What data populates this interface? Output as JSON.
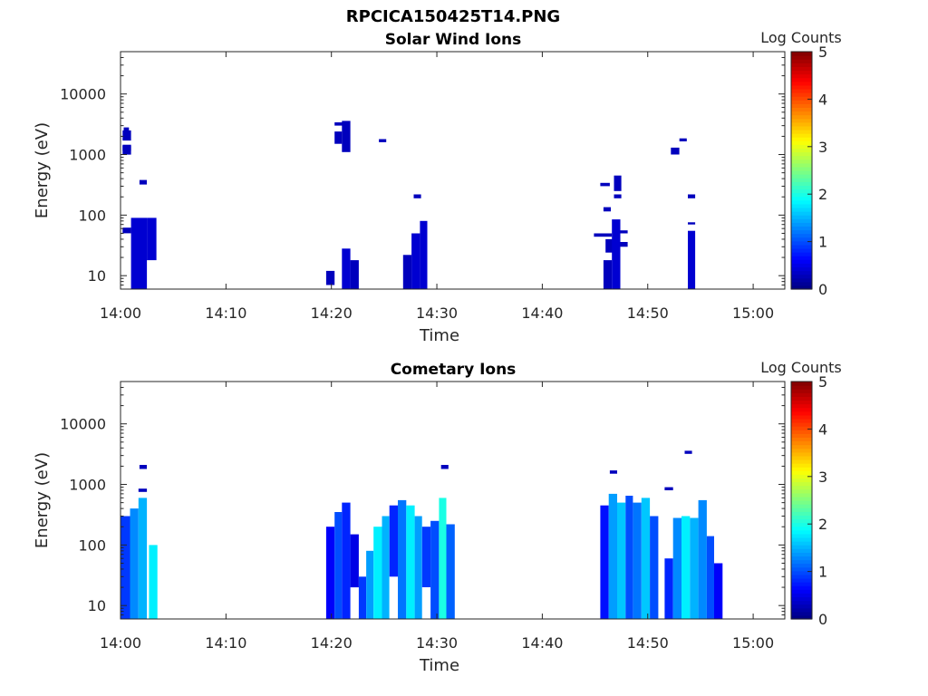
{
  "figure": {
    "title": "RPCICA150425T14.PNG"
  },
  "colorbar": {
    "label": "Log Counts",
    "ticks": [
      "0",
      "1",
      "2",
      "3",
      "4",
      "5"
    ],
    "range": [
      0,
      5
    ],
    "colormap": "jet"
  },
  "chart_data": [
    {
      "type": "heatmap",
      "title": "Solar Wind Ions",
      "xlabel": "Time",
      "ylabel": "Energy (eV)",
      "x_ticks": [
        "14:00",
        "14:10",
        "14:20",
        "14:30",
        "14:40",
        "14:50",
        "15:00"
      ],
      "x_range_min": [
        0,
        63
      ],
      "y_ticks": [
        "10",
        "100",
        "1000",
        "10000"
      ],
      "y_scale": "log",
      "ylim": [
        6,
        50000
      ],
      "z_label": "Log Counts",
      "zlim": [
        0,
        5
      ],
      "cells": [
        {
          "t": [
            0.2,
            1.0
          ],
          "e": [
            1700,
            2500
          ],
          "z": 0.3
        },
        {
          "t": [
            0.2,
            1.0
          ],
          "e": [
            1150,
            1450
          ],
          "z": 0.3
        },
        {
          "t": [
            0.2,
            1.0
          ],
          "e": [
            1000,
            1400
          ],
          "z": 0.3
        },
        {
          "t": [
            0.3,
            0.8
          ],
          "e": [
            2400,
            2800
          ],
          "z": 0.3
        },
        {
          "t": [
            1.8,
            2.5
          ],
          "e": [
            320,
            380
          ],
          "z": 0.3
        },
        {
          "t": [
            1.0,
            2.5
          ],
          "e": [
            6,
            90
          ],
          "z": 0.4
        },
        {
          "t": [
            2.5,
            3.4
          ],
          "e": [
            18,
            90
          ],
          "z": 0.4
        },
        {
          "t": [
            0.2,
            1.0
          ],
          "e": [
            50,
            62
          ],
          "z": 0.3
        },
        {
          "t": [
            19.5,
            20.3
          ],
          "e": [
            7,
            12
          ],
          "z": 0.3
        },
        {
          "t": [
            20.3,
            21.0
          ],
          "e": [
            1500,
            2400
          ],
          "z": 0.3
        },
        {
          "t": [
            20.3,
            21.2
          ],
          "e": [
            3000,
            3400
          ],
          "z": 0.3
        },
        {
          "t": [
            21.0,
            21.8
          ],
          "e": [
            1100,
            3600
          ],
          "z": 0.3
        },
        {
          "t": [
            21.0,
            21.8
          ],
          "e": [
            6,
            28
          ],
          "z": 0.4
        },
        {
          "t": [
            21.8,
            22.6
          ],
          "e": [
            6,
            18
          ],
          "z": 0.3
        },
        {
          "t": [
            24.5,
            25.2
          ],
          "e": [
            1600,
            1800
          ],
          "z": 0.3
        },
        {
          "t": [
            26.8,
            27.6
          ],
          "e": [
            6,
            22
          ],
          "z": 0.3
        },
        {
          "t": [
            27.6,
            28.4
          ],
          "e": [
            6,
            50
          ],
          "z": 0.4
        },
        {
          "t": [
            28.4,
            29.1
          ],
          "e": [
            6,
            80
          ],
          "z": 0.4
        },
        {
          "t": [
            27.8,
            28.5
          ],
          "e": [
            190,
            220
          ],
          "z": 0.3
        },
        {
          "t": [
            45.8,
            46.6
          ],
          "e": [
            6,
            18
          ],
          "z": 0.3
        },
        {
          "t": [
            46.0,
            46.8
          ],
          "e": [
            24,
            40
          ],
          "z": 0.3
        },
        {
          "t": [
            45.5,
            46.4
          ],
          "e": [
            300,
            340
          ],
          "z": 0.3
        },
        {
          "t": [
            45.8,
            46.5
          ],
          "e": [
            115,
            135
          ],
          "z": 0.3
        },
        {
          "t": [
            46.6,
            47.4
          ],
          "e": [
            6,
            85
          ],
          "z": 0.4
        },
        {
          "t": [
            46.8,
            47.5
          ],
          "e": [
            250,
            450
          ],
          "z": 0.3
        },
        {
          "t": [
            46.8,
            47.5
          ],
          "e": [
            190,
            220
          ],
          "z": 0.3
        },
        {
          "t": [
            44.9,
            46.6
          ],
          "e": [
            44,
            50
          ],
          "z": 0.3
        },
        {
          "t": [
            47.4,
            48.1
          ],
          "e": [
            30,
            36
          ],
          "z": 0.3
        },
        {
          "t": [
            47.4,
            48.1
          ],
          "e": [
            50,
            56
          ],
          "z": 0.3
        },
        {
          "t": [
            52.2,
            53.0
          ],
          "e": [
            1000,
            1300
          ],
          "z": 0.3
        },
        {
          "t": [
            53.0,
            53.7
          ],
          "e": [
            1650,
            1850
          ],
          "z": 0.3
        },
        {
          "t": [
            53.8,
            54.5
          ],
          "e": [
            6,
            55
          ],
          "z": 0.4
        },
        {
          "t": [
            53.8,
            54.5
          ],
          "e": [
            190,
            220
          ],
          "z": 0.3
        },
        {
          "t": [
            53.8,
            54.5
          ],
          "e": [
            70,
            76
          ],
          "z": 0.3
        }
      ]
    },
    {
      "type": "heatmap",
      "title": "Cometary Ions",
      "xlabel": "Time",
      "ylabel": "Energy (eV)",
      "x_ticks": [
        "14:00",
        "14:10",
        "14:20",
        "14:30",
        "14:40",
        "14:50",
        "15:00"
      ],
      "x_range_min": [
        0,
        63
      ],
      "y_ticks": [
        "10",
        "100",
        "1000",
        "10000"
      ],
      "y_scale": "log",
      "ylim": [
        6,
        50000
      ],
      "z_label": "Log Counts",
      "zlim": [
        0,
        5
      ],
      "cells": [
        {
          "t": [
            0,
            0.9
          ],
          "e": [
            6,
            300
          ],
          "z": 0.9
        },
        {
          "t": [
            0.9,
            1.7
          ],
          "e": [
            6,
            400
          ],
          "z": 1.3
        },
        {
          "t": [
            1.7,
            2.5
          ],
          "e": [
            6,
            600
          ],
          "z": 1.5
        },
        {
          "t": [
            2.7,
            3.5
          ],
          "e": [
            6,
            100
          ],
          "z": 1.8
        },
        {
          "t": [
            1.7,
            2.5
          ],
          "e": [
            750,
            850
          ],
          "z": 0.3
        },
        {
          "t": [
            1.8,
            2.5
          ],
          "e": [
            1800,
            2100
          ],
          "z": 0.3
        },
        {
          "t": [
            19.5,
            20.3
          ],
          "e": [
            6,
            200
          ],
          "z": 0.6
        },
        {
          "t": [
            20.3,
            21.0
          ],
          "e": [
            6,
            350
          ],
          "z": 1.0
        },
        {
          "t": [
            21.0,
            21.8
          ],
          "e": [
            6,
            500
          ],
          "z": 0.8
        },
        {
          "t": [
            21.8,
            22.6
          ],
          "e": [
            20,
            150
          ],
          "z": 0.5
        },
        {
          "t": [
            22.6,
            23.3
          ],
          "e": [
            6,
            30
          ],
          "z": 0.9
        },
        {
          "t": [
            23.3,
            24.0
          ],
          "e": [
            6,
            80
          ],
          "z": 1.4
        },
        {
          "t": [
            24.0,
            24.8
          ],
          "e": [
            6,
            200
          ],
          "z": 1.8
        },
        {
          "t": [
            24.8,
            25.5
          ],
          "e": [
            6,
            300
          ],
          "z": 1.5
        },
        {
          "t": [
            25.5,
            26.3
          ],
          "e": [
            30,
            450
          ],
          "z": 0.8
        },
        {
          "t": [
            26.3,
            27.1
          ],
          "e": [
            6,
            550
          ],
          "z": 1.2
        },
        {
          "t": [
            27.1,
            27.9
          ],
          "e": [
            6,
            450
          ],
          "z": 1.8
        },
        {
          "t": [
            27.9,
            28.6
          ],
          "e": [
            6,
            300
          ],
          "z": 1.4
        },
        {
          "t": [
            28.6,
            29.4
          ],
          "e": [
            20,
            200
          ],
          "z": 0.9
        },
        {
          "t": [
            29.4,
            30.2
          ],
          "e": [
            6,
            250
          ],
          "z": 1.0
        },
        {
          "t": [
            30.2,
            30.9
          ],
          "e": [
            6,
            600
          ],
          "z": 2.0
        },
        {
          "t": [
            30.9,
            31.7
          ],
          "e": [
            6,
            220
          ],
          "z": 1.1
        },
        {
          "t": [
            30.4,
            31.1
          ],
          "e": [
            1800,
            2100
          ],
          "z": 0.3
        },
        {
          "t": [
            45.5,
            46.3
          ],
          "e": [
            6,
            450
          ],
          "z": 0.7
        },
        {
          "t": [
            46.3,
            47.1
          ],
          "e": [
            6,
            700
          ],
          "z": 1.4
        },
        {
          "t": [
            47.1,
            47.9
          ],
          "e": [
            6,
            500
          ],
          "z": 1.6
        },
        {
          "t": [
            47.9,
            48.6
          ],
          "e": [
            6,
            650
          ],
          "z": 1.0
        },
        {
          "t": [
            48.6,
            49.4
          ],
          "e": [
            6,
            500
          ],
          "z": 1.2
        },
        {
          "t": [
            49.4,
            50.2
          ],
          "e": [
            6,
            600
          ],
          "z": 1.6
        },
        {
          "t": [
            50.2,
            51.0
          ],
          "e": [
            6,
            300
          ],
          "z": 1.0
        },
        {
          "t": [
            46.4,
            47.1
          ],
          "e": [
            1500,
            1700
          ],
          "z": 0.3
        },
        {
          "t": [
            51.6,
            52.4
          ],
          "e": [
            6,
            60
          ],
          "z": 0.8
        },
        {
          "t": [
            52.4,
            53.2
          ],
          "e": [
            6,
            280
          ],
          "z": 1.3
        },
        {
          "t": [
            53.2,
            54.0
          ],
          "e": [
            6,
            300
          ],
          "z": 1.8
        },
        {
          "t": [
            54.0,
            54.8
          ],
          "e": [
            6,
            280
          ],
          "z": 1.5
        },
        {
          "t": [
            54.8,
            55.6
          ],
          "e": [
            6,
            550
          ],
          "z": 1.3
        },
        {
          "t": [
            55.6,
            56.3
          ],
          "e": [
            6,
            140
          ],
          "z": 1.0
        },
        {
          "t": [
            56.3,
            57.1
          ],
          "e": [
            6,
            50
          ],
          "z": 0.6
        },
        {
          "t": [
            51.6,
            52.4
          ],
          "e": [
            800,
            900
          ],
          "z": 0.3
        },
        {
          "t": [
            53.5,
            54.2
          ],
          "e": [
            3200,
            3600
          ],
          "z": 0.3
        }
      ]
    }
  ]
}
